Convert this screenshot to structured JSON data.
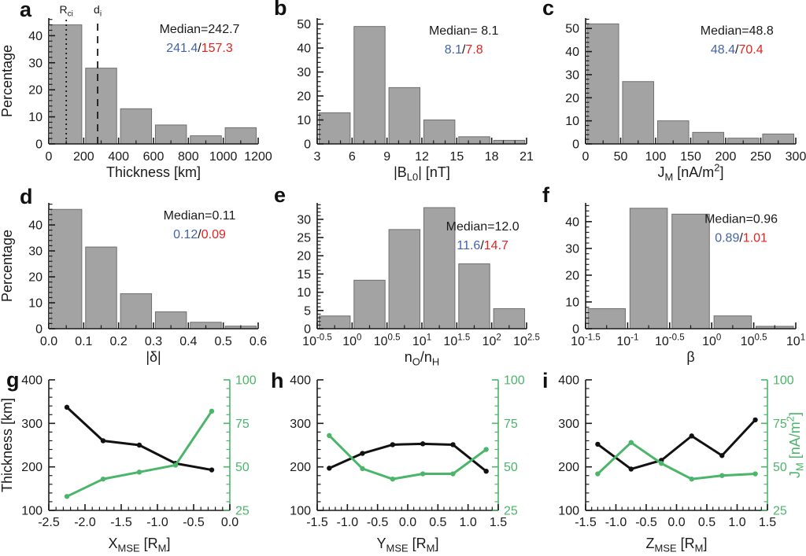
{
  "figure": {
    "background": "#ffffff"
  },
  "colors": {
    "bar_fill": "#a3a3a3",
    "bar_stroke": "#6f6f6f",
    "axis": "#1a1a1a",
    "text": "#1a1a1a",
    "median_blue": "#4263ad",
    "median_red": "#e3231f",
    "green": "#4bb56a",
    "black_line": "#111111"
  },
  "chart_data": [
    {
      "panel_label": "a",
      "type": "bar",
      "name": "thickness-histogram",
      "xlim": [
        0,
        1200
      ],
      "bin_edges": [
        0,
        200,
        400,
        600,
        800,
        1000,
        1200
      ],
      "values": [
        44,
        28,
        13,
        7,
        3,
        6
      ],
      "x_tick_vals": [
        0,
        200,
        400,
        600,
        800,
        1000,
        1200
      ],
      "x_tick_labels": [
        "0",
        "200",
        "400",
        "600",
        "800",
        "1000",
        "1200"
      ],
      "x_minor_step": 100,
      "ylim": [
        0,
        46.5
      ],
      "y_tick_vals": [
        0,
        10,
        20,
        30,
        40
      ],
      "y_minor_step": 2,
      "ylabel": "Percentage",
      "xlabel": [
        {
          "t": "Thickness [km]"
        }
      ],
      "median_label": "Median=242.7",
      "median_blue": "241.4",
      "median_red": "157.3",
      "ann_x": 0.72,
      "ann_y1": 0.12,
      "ann_y2": 0.27,
      "ref_lines": [
        {
          "x": 100,
          "dash": "dotted",
          "label": [
            {
              "t": "R"
            },
            {
              "t": "ci",
              "sub": true
            }
          ]
        },
        {
          "x": 280,
          "dash": "dashed",
          "label": [
            {
              "t": "d"
            },
            {
              "t": "i",
              "sub": true
            }
          ]
        }
      ]
    },
    {
      "panel_label": "b",
      "type": "bar",
      "name": "bl0-histogram",
      "xlim": [
        3,
        21
      ],
      "bin_edges": [
        3,
        6,
        9,
        12,
        15,
        18,
        21
      ],
      "values": [
        13,
        49,
        23.5,
        10,
        3,
        1.5
      ],
      "x_tick_vals": [
        3,
        6,
        9,
        12,
        15,
        18,
        21
      ],
      "x_tick_labels": [
        "3",
        "6",
        "9",
        "12",
        "15",
        "18",
        "21"
      ],
      "x_minor_step": 1,
      "ylim": [
        0,
        52.5
      ],
      "y_tick_vals": [
        0,
        10,
        20,
        30,
        40,
        50
      ],
      "y_minor_step": 2,
      "ylabel": null,
      "xlabel": [
        {
          "t": "|B"
        },
        {
          "t": "L0",
          "sub": true
        },
        {
          "t": "| [nT]"
        }
      ],
      "median_label": "Median= 8.1",
      "median_blue": "8.1",
      "median_red": "7.8",
      "ann_x": 0.7,
      "ann_y1": 0.13,
      "ann_y2": 0.28,
      "ref_lines": []
    },
    {
      "panel_label": "c",
      "type": "bar",
      "name": "jm-histogram",
      "xlim": [
        0,
        300
      ],
      "bin_edges": [
        0,
        50,
        100,
        150,
        200,
        250,
        300
      ],
      "values": [
        52,
        27,
        10,
        5,
        2.5,
        4.3
      ],
      "x_tick_vals": [
        0,
        50,
        100,
        150,
        200,
        250,
        300
      ],
      "x_tick_labels": [
        "0",
        "50",
        "100",
        "150",
        "200",
        "250",
        "300"
      ],
      "x_minor_step": 25,
      "ylim": [
        0,
        54.5
      ],
      "y_tick_vals": [
        0,
        10,
        20,
        30,
        40,
        50
      ],
      "y_minor_step": 2,
      "ylabel": null,
      "xlabel": [
        {
          "t": "J"
        },
        {
          "t": "M",
          "sub": true
        },
        {
          "t": " [nA/m"
        },
        {
          "t": "2",
          "sup": true
        },
        {
          "t": "]"
        }
      ],
      "median_label": "Median=48.8",
      "median_blue": "48.4",
      "median_red": "70.4",
      "ann_x": 0.72,
      "ann_y1": 0.13,
      "ann_y2": 0.28,
      "ref_lines": []
    },
    {
      "panel_label": "d",
      "type": "bar",
      "name": "delta-histogram",
      "xlim": [
        0,
        0.6
      ],
      "bin_edges": [
        0,
        0.1,
        0.2,
        0.3,
        0.4,
        0.5,
        0.6
      ],
      "values": [
        46,
        31.5,
        13.5,
        6.5,
        2.5,
        1
      ],
      "x_tick_vals": [
        0,
        0.1,
        0.2,
        0.3,
        0.4,
        0.5,
        0.6
      ],
      "x_tick_labels": [
        "0.0",
        "0.1",
        "0.2",
        "0.3",
        "0.4",
        "0.5",
        "0.6"
      ],
      "x_minor_step": 0.05,
      "ylim": [
        0,
        48.5
      ],
      "y_tick_vals": [
        0,
        10,
        20,
        30,
        40
      ],
      "y_minor_step": 2,
      "ylabel": "Percentage",
      "xlabel": [
        {
          "t": "|δ|"
        }
      ],
      "median_label": "Median=0.11",
      "median_blue": "0.12",
      "median_red": "0.09",
      "ann_x": 0.72,
      "ann_y1": 0.13,
      "ann_y2": 0.28,
      "ref_lines": []
    },
    {
      "panel_label": "e",
      "type": "bar",
      "name": "no-nh-histogram",
      "xlim": [
        -0.5,
        2.5
      ],
      "bin_edges": [
        -0.5,
        0,
        0.5,
        1,
        1.5,
        2,
        2.5
      ],
      "values": [
        3.5,
        13.3,
        27.2,
        33.2,
        17.8,
        5.5
      ],
      "x_tick_vals": [
        -0.5,
        0,
        0.5,
        1,
        1.5,
        2,
        2.5
      ],
      "x_tick_labels": [
        [
          {
            "t": "10"
          },
          {
            "t": "-0.5",
            "sup": true
          }
        ],
        [
          {
            "t": "10"
          },
          {
            "t": "0",
            "sup": true
          }
        ],
        [
          {
            "t": "10"
          },
          {
            "t": "0.5",
            "sup": true
          }
        ],
        [
          {
            "t": "10"
          },
          {
            "t": "1",
            "sup": true
          }
        ],
        [
          {
            "t": "10"
          },
          {
            "t": "1.5",
            "sup": true
          }
        ],
        [
          {
            "t": "10"
          },
          {
            "t": "2",
            "sup": true
          }
        ],
        [
          {
            "t": "10"
          },
          {
            "t": "2.5",
            "sup": true
          }
        ]
      ],
      "x_minor_step": 0.25,
      "ylim": [
        0,
        34.5
      ],
      "y_tick_vals": [
        0,
        5,
        10,
        15,
        20,
        25,
        30
      ],
      "y_minor_step": 1,
      "ylabel": null,
      "xlabel": [
        {
          "t": "n"
        },
        {
          "t": "O",
          "sub": true
        },
        {
          "t": "/n"
        },
        {
          "t": "H",
          "sub": true
        }
      ],
      "median_label": "Median=12.0",
      "median_blue": "11.6",
      "median_red": "14.7",
      "ann_x": 0.79,
      "ann_y1": 0.22,
      "ann_y2": 0.37,
      "ref_lines": []
    },
    {
      "panel_label": "f",
      "type": "bar",
      "name": "beta-histogram",
      "xlim": [
        -1.5,
        1
      ],
      "bin_edges": [
        -1.5,
        -1,
        -0.5,
        0,
        0.5,
        1
      ],
      "values": [
        7.5,
        45,
        42.8,
        4.8,
        0.9
      ],
      "x_tick_vals": [
        -1.5,
        -1,
        -0.5,
        0,
        0.5,
        1
      ],
      "x_tick_labels": [
        [
          {
            "t": "10"
          },
          {
            "t": "-1.5",
            "sup": true
          }
        ],
        [
          {
            "t": "10"
          },
          {
            "t": "-1",
            "sup": true
          }
        ],
        [
          {
            "t": "10"
          },
          {
            "t": "-0.5",
            "sup": true
          }
        ],
        [
          {
            "t": "10"
          },
          {
            "t": "0",
            "sup": true
          }
        ],
        [
          {
            "t": "10"
          },
          {
            "t": "0.5",
            "sup": true
          }
        ],
        [
          {
            "t": "10"
          },
          {
            "t": "1",
            "sup": true
          }
        ]
      ],
      "x_minor_step": 0.25,
      "ylim": [
        0,
        47
      ],
      "y_tick_vals": [
        0,
        10,
        20,
        30,
        40
      ],
      "y_minor_step": 2,
      "ylabel": null,
      "xlabel": [
        {
          "t": "β"
        }
      ],
      "median_label": "Median=0.96",
      "median_blue": "0.89",
      "median_red": "1.01",
      "ann_x": 0.74,
      "ann_y1": 0.16,
      "ann_y2": 0.31,
      "ref_lines": []
    },
    {
      "panel_label": "g",
      "type": "line",
      "name": "thickness-jm-vs-xmse",
      "xlim": [
        -2.5,
        0
      ],
      "x": [
        -2.25,
        -1.75,
        -1.25,
        -0.75,
        -0.25
      ],
      "x_tick_vals": [
        -2.5,
        -2,
        -1.5,
        -1,
        -0.5,
        0
      ],
      "x_tick_labels": [
        "-2.5",
        "-2.0",
        "-1.5",
        "-1.0",
        "-0.5",
        "0.0"
      ],
      "x_minor_step": 0.1,
      "left_ylim": [
        100,
        400
      ],
      "left_tick_vals": [
        100,
        200,
        300,
        400
      ],
      "left_tick_labels": [
        "100",
        "200",
        "300",
        "400"
      ],
      "left_minor_step": 20,
      "right_ylim": [
        25,
        100
      ],
      "right_tick_vals": [
        25,
        50,
        75,
        100
      ],
      "right_tick_labels": [
        "25",
        "50",
        "75",
        "100"
      ],
      "right_minor_step": 5,
      "series": [
        {
          "name": "Thickness [km]",
          "axis": "left",
          "values": [
            337,
            260,
            250,
            208,
            193
          ]
        },
        {
          "name": "J_M [nA/m2]",
          "axis": "right",
          "values": [
            33,
            43,
            47,
            51,
            82
          ]
        }
      ],
      "xlabel": [
        {
          "t": "X"
        },
        {
          "t": "MSE",
          "sub": true
        },
        {
          "t": " [R"
        },
        {
          "t": "M",
          "sub": true
        },
        {
          "t": "]"
        }
      ],
      "left_label": [
        {
          "t": "Thickness [km]"
        }
      ],
      "right_label": null
    },
    {
      "panel_label": "h",
      "type": "line",
      "name": "thickness-jm-vs-ymse",
      "xlim": [
        -1.5,
        1.5
      ],
      "x": [
        -1.3,
        -0.75,
        -0.25,
        0.25,
        0.75,
        1.3
      ],
      "x_tick_vals": [
        -1.5,
        -1,
        -0.5,
        0,
        0.5,
        1,
        1.5
      ],
      "x_tick_labels": [
        "-1.5",
        "-1.0",
        "-0.5",
        "0.0",
        "0.5",
        "1.0",
        "1.5"
      ],
      "x_minor_step": 0.1,
      "left_ylim": [
        100,
        400
      ],
      "left_tick_vals": [
        100,
        200,
        300,
        400
      ],
      "left_tick_labels": [
        "100",
        "200",
        "300",
        "400"
      ],
      "left_minor_step": 20,
      "right_ylim": [
        25,
        100
      ],
      "right_tick_vals": [
        25,
        50,
        75,
        100
      ],
      "right_tick_labels": [
        "25",
        "50",
        "75",
        "100"
      ],
      "right_minor_step": 5,
      "series": [
        {
          "name": "Thickness [km]",
          "axis": "left",
          "values": [
            197,
            231,
            251,
            253,
            251,
            190
          ]
        },
        {
          "name": "J_M [nA/m2]",
          "axis": "right",
          "values": [
            68,
            49,
            43,
            46,
            46,
            60
          ]
        }
      ],
      "xlabel": [
        {
          "t": "Y"
        },
        {
          "t": "MSE",
          "sub": true
        },
        {
          "t": " [R"
        },
        {
          "t": "M",
          "sub": true
        },
        {
          "t": "]"
        }
      ],
      "left_label": null,
      "right_label": null
    },
    {
      "panel_label": "i",
      "type": "line",
      "name": "thickness-jm-vs-zmse",
      "xlim": [
        -1.5,
        1.5
      ],
      "x": [
        -1.3,
        -0.75,
        -0.25,
        0.25,
        0.75,
        1.3
      ],
      "x_tick_vals": [
        -1.5,
        -1,
        -0.5,
        0,
        0.5,
        1,
        1.5
      ],
      "x_tick_labels": [
        "-1.5",
        "-1.0",
        "-0.5",
        "0.0",
        "0.5",
        "1.0",
        "1.5"
      ],
      "x_minor_step": 0.1,
      "left_ylim": [
        100,
        400
      ],
      "left_tick_vals": [
        100,
        200,
        300,
        400
      ],
      "left_tick_labels": [
        "100",
        "200",
        "300",
        "400"
      ],
      "left_minor_step": 20,
      "right_ylim": [
        25,
        100
      ],
      "right_tick_vals": [
        25,
        50,
        75,
        100
      ],
      "right_tick_labels": [
        "25",
        "50",
        "75",
        "100"
      ],
      "right_minor_step": 5,
      "series": [
        {
          "name": "Thickness [km]",
          "axis": "left",
          "values": [
            252,
            195,
            215,
            271,
            226,
            308
          ]
        },
        {
          "name": "J_M [nA/m2]",
          "axis": "right",
          "values": [
            46,
            64,
            52,
            43,
            45,
            46
          ]
        }
      ],
      "xlabel": [
        {
          "t": "Z"
        },
        {
          "t": "MSE",
          "sub": true
        },
        {
          "t": " [R"
        },
        {
          "t": "M",
          "sub": true
        },
        {
          "t": "]"
        }
      ],
      "left_label": null,
      "right_label": [
        {
          "t": "J"
        },
        {
          "t": "M",
          "sub": true
        },
        {
          "t": " [nA/m"
        },
        {
          "t": "2",
          "sup": true
        },
        {
          "t": "]"
        }
      ]
    }
  ]
}
